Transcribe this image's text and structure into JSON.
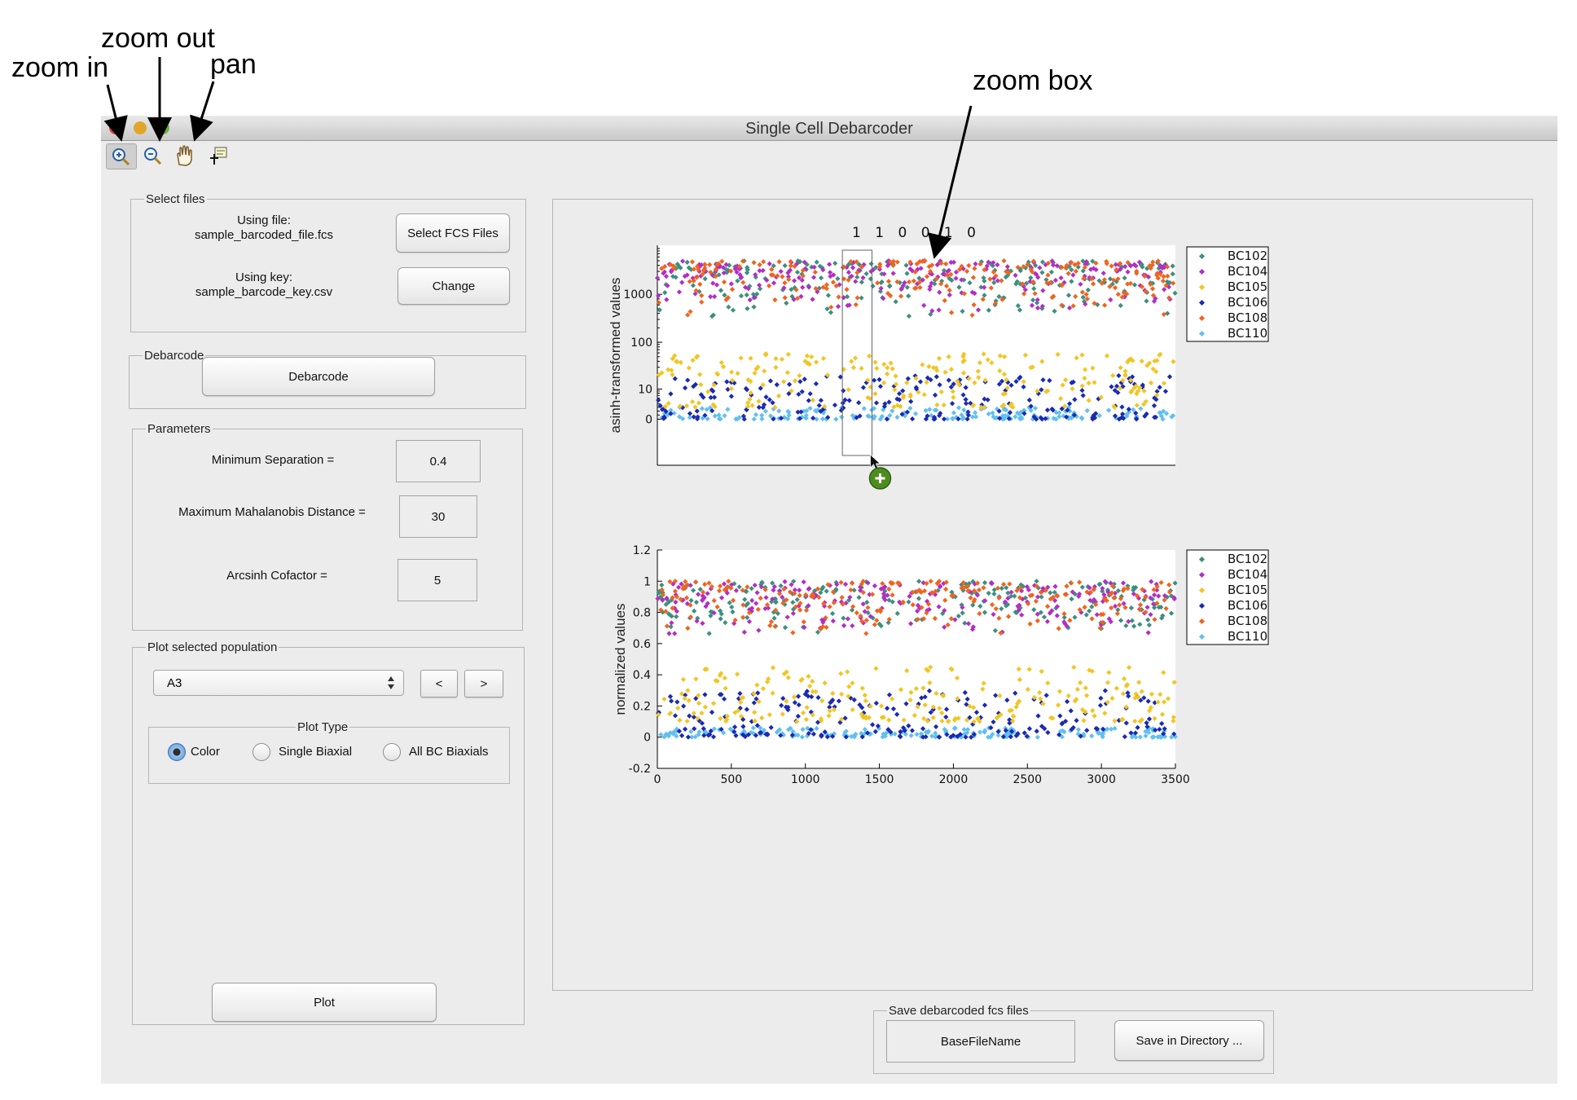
{
  "annotations": {
    "zoom_in": "zoom in",
    "zoom_out": "zoom out",
    "pan": "pan",
    "zoom_box": "zoom box"
  },
  "window": {
    "title": "Single Cell Debarcoder",
    "traffic_lights": [
      "#d8453b",
      "#e0a62a",
      "#6cb33f"
    ]
  },
  "toolbar": {
    "tools": [
      "zoom-in-icon",
      "zoom-out-icon",
      "pan-hand-icon",
      "data-cursor-icon"
    ],
    "active_tool": "zoom-in-icon"
  },
  "select_files": {
    "legend": "Select files",
    "using_file_label": "Using file:",
    "using_file_value": "sample_barcoded_file.fcs",
    "using_key_label": "Using key:",
    "using_key_value": "sample_barcode_key.csv",
    "select_button": "Select FCS Files",
    "change_button": "Change"
  },
  "debarcode": {
    "legend": "Debarcode",
    "button": "Debarcode"
  },
  "parameters": {
    "legend": "Parameters",
    "min_sep_label": "Minimum Separation =",
    "min_sep_value": "0.4",
    "mahal_label": "Maximum Mahalanobis Distance =",
    "mahal_value": "30",
    "cofactor_label": "Arcsinh Cofactor =",
    "cofactor_value": "5"
  },
  "plot_selected": {
    "legend": "Plot selected population",
    "population": "A3",
    "prev_button": "<",
    "next_button": ">",
    "plot_type_legend": "Plot Type",
    "radio_options": [
      "Color",
      "Single Biaxial",
      "All BC Biaxials"
    ],
    "selected_option": "Color",
    "plot_button": "Plot"
  },
  "save": {
    "legend": "Save debarcoded fcs files",
    "basename": "BaseFileName",
    "save_button": "Save in Directory ..."
  },
  "colors": {
    "BC102": "#3d8f7f",
    "BC104": "#b22ec4",
    "BC105": "#f2c522",
    "BC106": "#1b2ab0",
    "BC108": "#f0641e",
    "BC110": "#62bff0"
  },
  "chart_data": [
    {
      "type": "scatter",
      "title": "1 1 0 0 1 0",
      "xlabel": "",
      "ylabel": "asinh-transformed values",
      "yscale": "asinh",
      "xlim": [
        0,
        3500
      ],
      "yticks": [
        "0",
        "10",
        "100",
        "1000"
      ],
      "xtick_labels_shown": false,
      "legend": [
        "BC102",
        "BC104",
        "BC105",
        "BC106",
        "BC108",
        "BC110"
      ],
      "legend_position": "right",
      "series": [
        {
          "name": "BC102",
          "band": "high",
          "approx_range": [
            300,
            5000
          ]
        },
        {
          "name": "BC104",
          "band": "high",
          "approx_range": [
            300,
            5000
          ]
        },
        {
          "name": "BC108",
          "band": "high",
          "approx_range": [
            300,
            5000
          ]
        },
        {
          "name": "BC105",
          "band": "low",
          "approx_range": [
            3,
            60
          ]
        },
        {
          "name": "BC106",
          "band": "low",
          "approx_range": [
            0,
            20
          ]
        },
        {
          "name": "BC110",
          "band": "low",
          "approx_range": [
            0,
            3
          ]
        }
      ],
      "zoom_box": {
        "x": [
          1250,
          1450
        ]
      }
    },
    {
      "type": "scatter",
      "title": "",
      "xlabel": "",
      "ylabel": "normalized values",
      "xlim": [
        0,
        3500
      ],
      "ylim": [
        -0.2,
        1.2
      ],
      "xticks": [
        0,
        500,
        1000,
        1500,
        2000,
        2500,
        3000,
        3500
      ],
      "yticks": [
        -0.2,
        0,
        0.2,
        0.4,
        0.6,
        0.8,
        1,
        1.2
      ],
      "legend": [
        "BC102",
        "BC104",
        "BC105",
        "BC106",
        "BC108",
        "BC110"
      ],
      "legend_position": "right",
      "series": [
        {
          "name": "BC102",
          "band": "high",
          "approx_range": [
            0.65,
            1.0
          ]
        },
        {
          "name": "BC104",
          "band": "high",
          "approx_range": [
            0.65,
            1.0
          ]
        },
        {
          "name": "BC108",
          "band": "high",
          "approx_range": [
            0.65,
            1.0
          ]
        },
        {
          "name": "BC105",
          "band": "low",
          "approx_range": [
            0.1,
            0.45
          ]
        },
        {
          "name": "BC106",
          "band": "low",
          "approx_range": [
            0.0,
            0.3
          ]
        },
        {
          "name": "BC110",
          "band": "low",
          "approx_range": [
            0.0,
            0.06
          ]
        }
      ]
    }
  ]
}
